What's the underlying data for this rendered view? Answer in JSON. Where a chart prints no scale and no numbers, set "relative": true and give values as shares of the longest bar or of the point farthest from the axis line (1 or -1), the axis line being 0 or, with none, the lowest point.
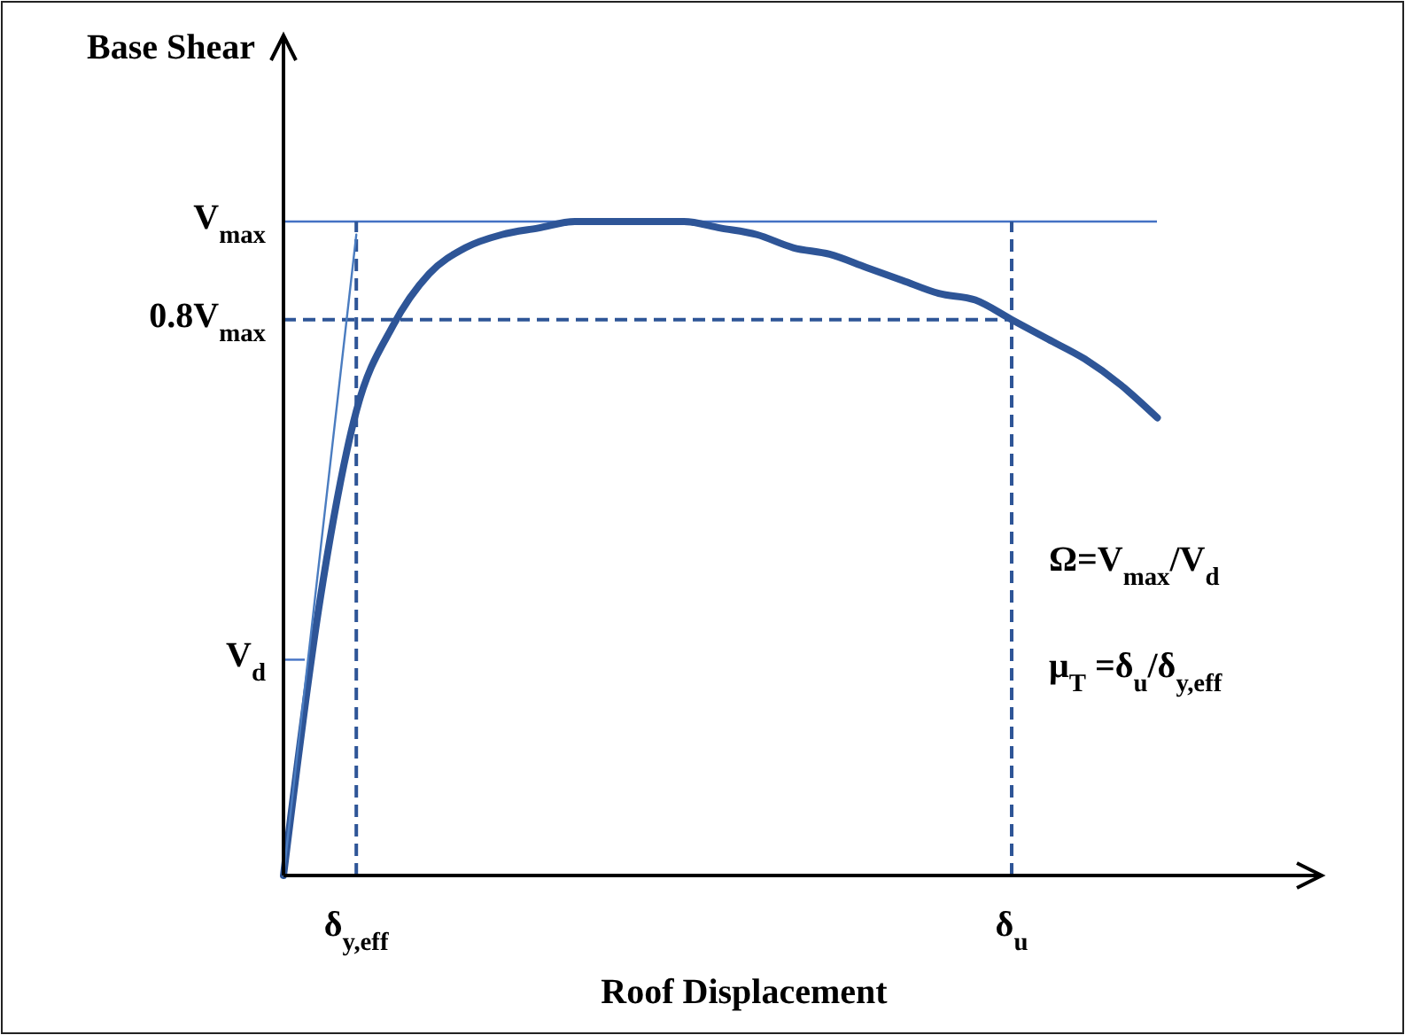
{
  "chart_data": {
    "type": "line",
    "relative": true,
    "xlabel": "Roof Displacement",
    "ylabel": "Base Shear",
    "categories": [
      null,
      null,
      "δ$_{y,eff}$",
      null,
      null,
      null,
      null,
      null,
      null,
      null,
      null,
      null,
      null,
      null,
      null,
      null,
      null,
      null,
      null,
      null,
      "δ$_{u}$",
      null,
      null,
      null,
      null
    ],
    "series": [
      {
        "color": "#2e5597",
        "values": [
          0,
          0.42,
          0.71,
          0.84,
          0.92,
          0.96,
          0.98,
          0.99,
          1,
          1,
          1,
          1,
          0.99,
          0.98,
          0.96,
          0.95,
          0.93,
          0.91,
          0.89,
          0.88,
          0.85,
          0.82,
          0.79,
          0.75,
          0.7
        ]
      },
      {
        "color": "#4a7cc0",
        "values": [
          0,
          0.49,
          0.98,
          null,
          null,
          null,
          null,
          null,
          null,
          null,
          null,
          null,
          null,
          null,
          null,
          null,
          null,
          null,
          null,
          null,
          null,
          null,
          null,
          null,
          null
        ]
      }
    ],
    "ref_lines": [
      {
        "axis": "y",
        "value": 1,
        "label": "V$_{max}$",
        "color": "#4472c4",
        "line_style": "solid"
      },
      {
        "axis": "y",
        "value": 0.85,
        "label": "0.8V$_{max}$",
        "color": "#2e5597",
        "line_style": "dashed"
      },
      {
        "axis": "y",
        "value": 0.33,
        "label": "V$_{d}$",
        "color": "#4472c4"
      },
      {
        "axis": "x",
        "value": "δ$_{y,eff}$",
        "color": "#2e5597",
        "line_style": "dashed"
      },
      {
        "axis": "x",
        "value": "δ$_{u}$",
        "color": "#2e5597",
        "line_style": "dashed"
      }
    ],
    "annotations": [
      "Ω=V$_{max}$/V$_{d}$",
      "μ$_{T}$ =δ$_{u}$/δ$_{y,eff}$"
    ]
  }
}
